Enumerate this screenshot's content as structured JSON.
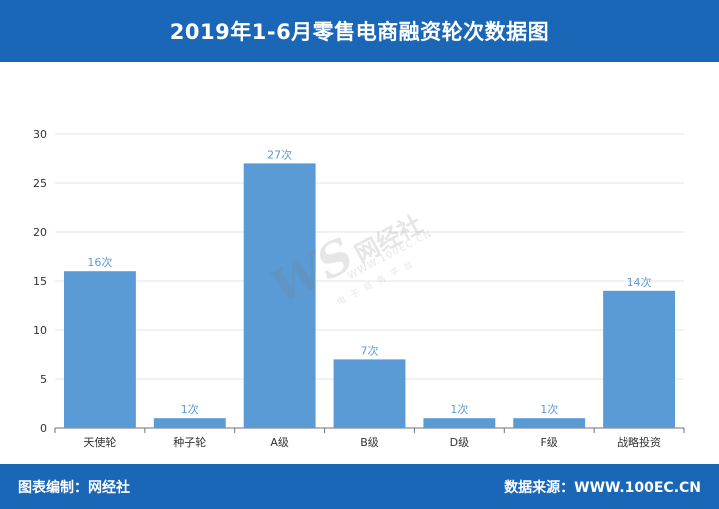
{
  "header": {
    "title": "2019年1-6月零售电商融资轮次数据图"
  },
  "footer": {
    "left_text": "图表编制：网经社",
    "right_text": "数据来源：WWW.100EC.CN"
  },
  "watermark": {
    "logo": "WS",
    "name": "网经社",
    "url": "WWW.100EC.CN",
    "slogan": "电子商务平台"
  },
  "colors": {
    "header_bg": "#1a66b7",
    "bar": "#5b9bd5",
    "label": "#5b9bd5",
    "grid": "#e6e6e6",
    "axis_text": "#333333"
  },
  "chart_data": {
    "type": "bar",
    "title": "2019年1-6月零售电商融资轮次数据图",
    "xlabel": "",
    "ylabel": "",
    "categories": [
      "天使轮",
      "种子轮",
      "A级",
      "B级",
      "D级",
      "F级",
      "战略投资"
    ],
    "values": [
      16,
      1,
      27,
      7,
      1,
      1,
      14
    ],
    "value_labels": [
      "16次",
      "1次",
      "27次",
      "7次",
      "1次",
      "1次",
      "14次"
    ],
    "ylim": [
      0,
      30
    ],
    "yticks": [
      0,
      5,
      10,
      15,
      20,
      25,
      30
    ],
    "grid": true,
    "legend": "none"
  }
}
